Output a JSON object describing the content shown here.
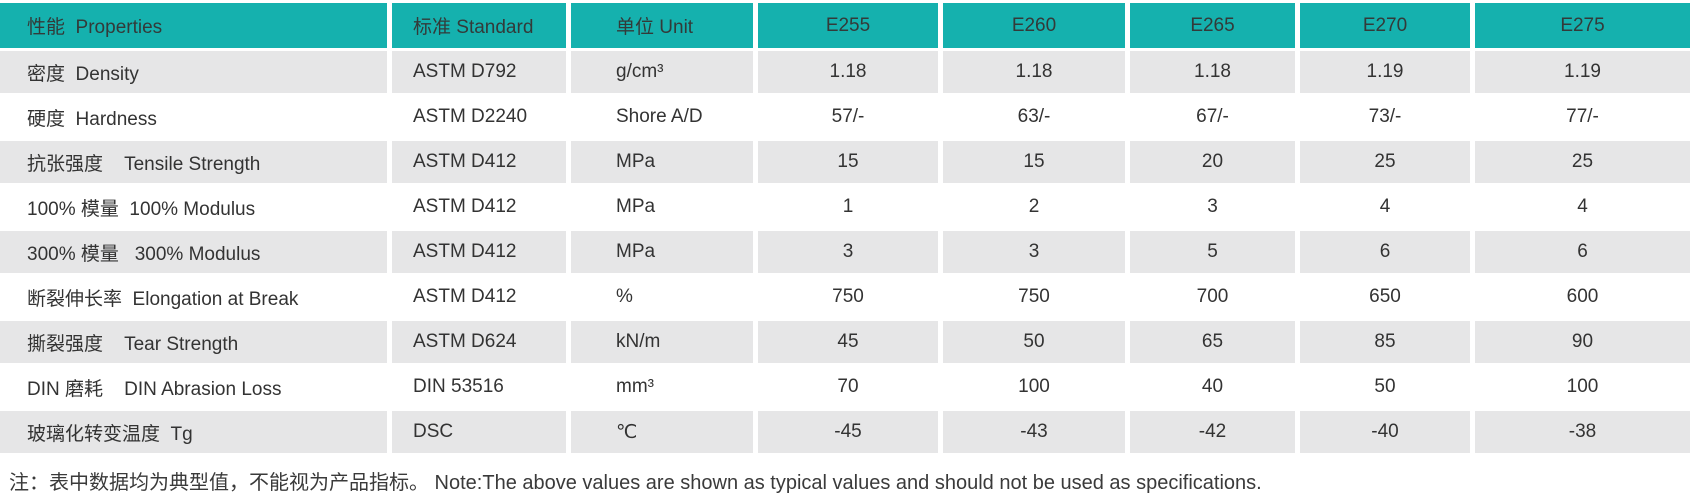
{
  "table": {
    "columns": [
      {
        "id": "properties",
        "label": "性能  Properties"
      },
      {
        "id": "standard",
        "label": "标准 Standard"
      },
      {
        "id": "unit",
        "label": "单位 Unit"
      },
      {
        "id": "e255",
        "label": "E255"
      },
      {
        "id": "e260",
        "label": "E260"
      },
      {
        "id": "e265",
        "label": "E265"
      },
      {
        "id": "e270",
        "label": "E270"
      },
      {
        "id": "e275",
        "label": "E275"
      }
    ],
    "rows": [
      {
        "cells": [
          "密度  Density",
          "ASTM D792",
          "g/cm³",
          "1.18",
          "1.18",
          "1.18",
          "1.19",
          "1.19"
        ]
      },
      {
        "cells": [
          "硬度  Hardness",
          "ASTM D2240",
          "Shore A/D",
          "57/-",
          "63/-",
          "67/-",
          "73/-",
          "77/-"
        ]
      },
      {
        "cells": [
          "抗张强度    Tensile Strength",
          "ASTM D412",
          "MPa",
          "15",
          "15",
          "20",
          "25",
          "25"
        ]
      },
      {
        "cells": [
          "100% 模量  100% Modulus",
          "ASTM D412",
          "MPa",
          "1",
          "2",
          "3",
          "4",
          "4"
        ]
      },
      {
        "cells": [
          "300% 模量   300% Modulus",
          "ASTM D412",
          "MPa",
          "3",
          "3",
          "5",
          "6",
          "6"
        ]
      },
      {
        "cells": [
          "断裂伸长率  Elongation at Break",
          "ASTM D412",
          "%",
          "750",
          "750",
          "700",
          "650",
          "600"
        ]
      },
      {
        "cells": [
          "撕裂强度    Tear Strength",
          "ASTM D624",
          "kN/m",
          "45",
          "50",
          "65",
          "85",
          "90"
        ]
      },
      {
        "cells": [
          "DIN 磨耗    DIN Abrasion Loss",
          "DIN 53516",
          "mm³",
          "70",
          "100",
          "40",
          "50",
          "100"
        ]
      },
      {
        "cells": [
          "玻璃化转变温度  Tg",
          "DSC",
          "℃",
          "-45",
          "-43",
          "-42",
          "-40",
          "-38"
        ]
      }
    ]
  },
  "note": "注：表中数据均为典型值，不能视为产品指标。 Note:The above values are shown as typical values and should not be used as specifications.",
  "colors": {
    "header_bg": "#15b1ae",
    "row_shade_bg": "#e6e6e7",
    "row_plain_bg": "#ffffff",
    "text": "#333333"
  }
}
